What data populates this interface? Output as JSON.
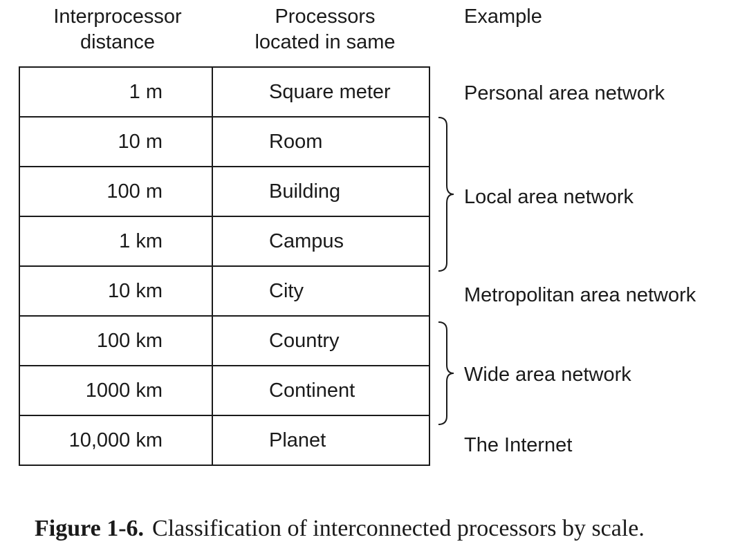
{
  "headers": {
    "distance": [
      "Interprocessor",
      "distance"
    ],
    "located": [
      "Processors",
      "located in same"
    ],
    "example": "Example"
  },
  "rows": [
    {
      "distance": "1 m",
      "place": "Square meter"
    },
    {
      "distance": "10 m",
      "place": "Room"
    },
    {
      "distance": "100 m",
      "place": "Building"
    },
    {
      "distance": "1 km",
      "place": "Campus"
    },
    {
      "distance": "10 km",
      "place": "City"
    },
    {
      "distance": "100 km",
      "place": "Country"
    },
    {
      "distance": "1000 km",
      "place": "Continent"
    },
    {
      "distance": "10,000 km",
      "place": "Planet"
    }
  ],
  "examples": [
    "Personal area network",
    "Local area network",
    "Metropolitan area network",
    "Wide area network",
    "The Internet"
  ],
  "caption": {
    "label": "Figure 1-6.",
    "text": "Classification of interconnected processors by scale."
  }
}
